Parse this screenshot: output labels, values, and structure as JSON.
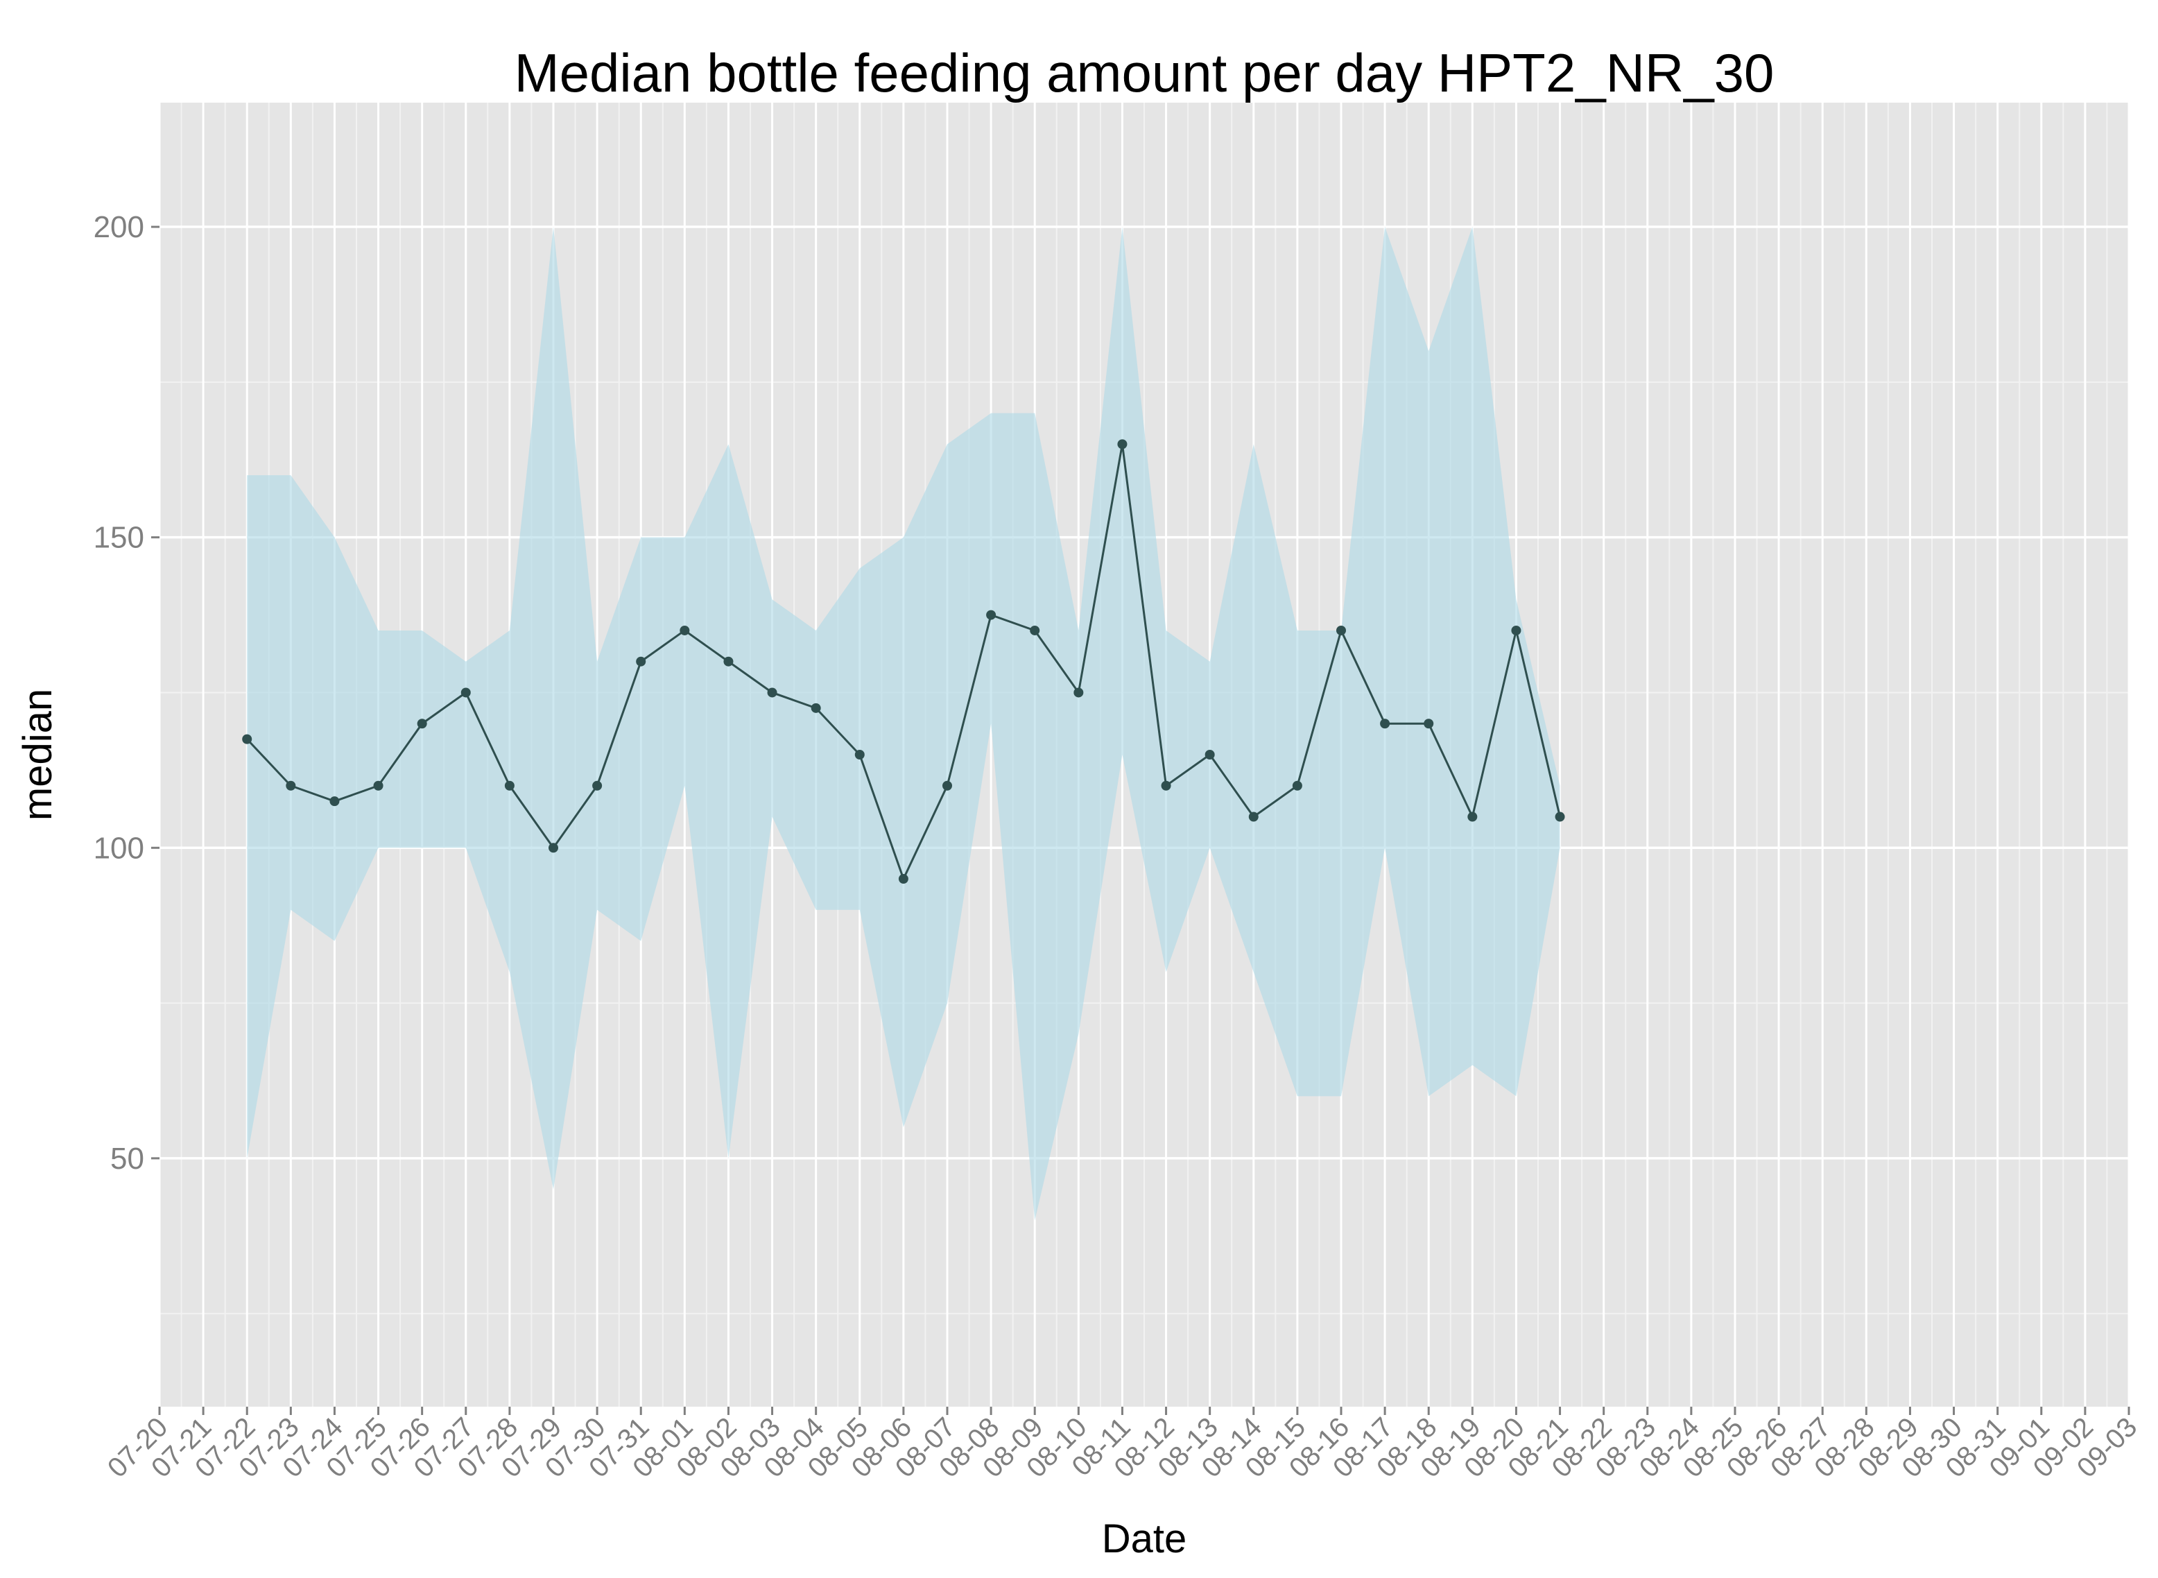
{
  "chart_data": {
    "type": "line",
    "title": "Median bottle feeding amount per day HPT2_NR_30",
    "xlabel": "Date",
    "ylabel": "median",
    "ylim": [
      10,
      220
    ],
    "yticks": [
      50,
      100,
      150,
      200
    ],
    "grid": true,
    "legend": "none",
    "x_tick_labels": [
      "07-20",
      "07-21",
      "07-22",
      "07-23",
      "07-24",
      "07-25",
      "07-26",
      "07-27",
      "07-28",
      "07-29",
      "07-30",
      "07-31",
      "08-01",
      "08-02",
      "08-03",
      "08-04",
      "08-05",
      "08-06",
      "08-07",
      "08-08",
      "08-09",
      "08-10",
      "08-11",
      "08-12",
      "08-13",
      "08-14",
      "08-15",
      "08-16",
      "08-17",
      "08-18",
      "08-19",
      "08-20",
      "08-21",
      "08-22",
      "08-23",
      "08-24",
      "08-25",
      "08-26",
      "08-27",
      "08-28",
      "08-29",
      "08-30",
      "08-31",
      "09-01",
      "09-02",
      "09-03"
    ],
    "series": [
      {
        "x": [
          "07-22",
          "07-23",
          "07-24",
          "07-25",
          "07-26",
          "07-27",
          "07-28",
          "07-29",
          "07-30",
          "07-31",
          "08-01",
          "08-02",
          "08-03",
          "08-04",
          "08-05",
          "08-06",
          "08-07",
          "08-08",
          "08-09",
          "08-10",
          "08-11",
          "08-12",
          "08-13",
          "08-14",
          "08-15",
          "08-16",
          "08-17",
          "08-18",
          "08-19",
          "08-20",
          "08-21"
        ],
        "median": [
          117.5,
          110,
          107.5,
          110,
          120,
          125,
          110,
          100,
          110,
          130,
          135,
          130,
          125,
          122.5,
          115,
          95,
          110,
          137.5,
          135,
          125,
          165,
          110,
          115,
          105,
          110,
          135,
          120,
          120,
          105,
          135,
          105
        ],
        "lower": [
          50,
          90,
          85,
          100,
          100,
          100,
          80,
          45,
          90,
          85,
          110,
          50,
          105,
          90,
          90,
          55,
          75,
          120,
          40,
          70,
          115,
          80,
          100,
          80,
          60,
          60,
          100,
          60,
          65,
          60,
          100
        ],
        "upper": [
          160,
          160,
          150,
          135,
          135,
          130,
          135,
          200,
          130,
          150,
          150,
          165,
          140,
          135,
          145,
          150,
          165,
          170,
          170,
          135,
          200,
          135,
          130,
          165,
          135,
          135,
          200,
          180,
          200,
          140,
          110
        ]
      }
    ],
    "colors": {
      "panel": "#e5e5e5",
      "grid_major": "#ffffff",
      "grid_minor": "#f2f2f2",
      "ribbon": "#add8e6",
      "line": "#2f4f4f",
      "points": "#2f4f4f",
      "tick_text": "#7f7f7f"
    }
  }
}
